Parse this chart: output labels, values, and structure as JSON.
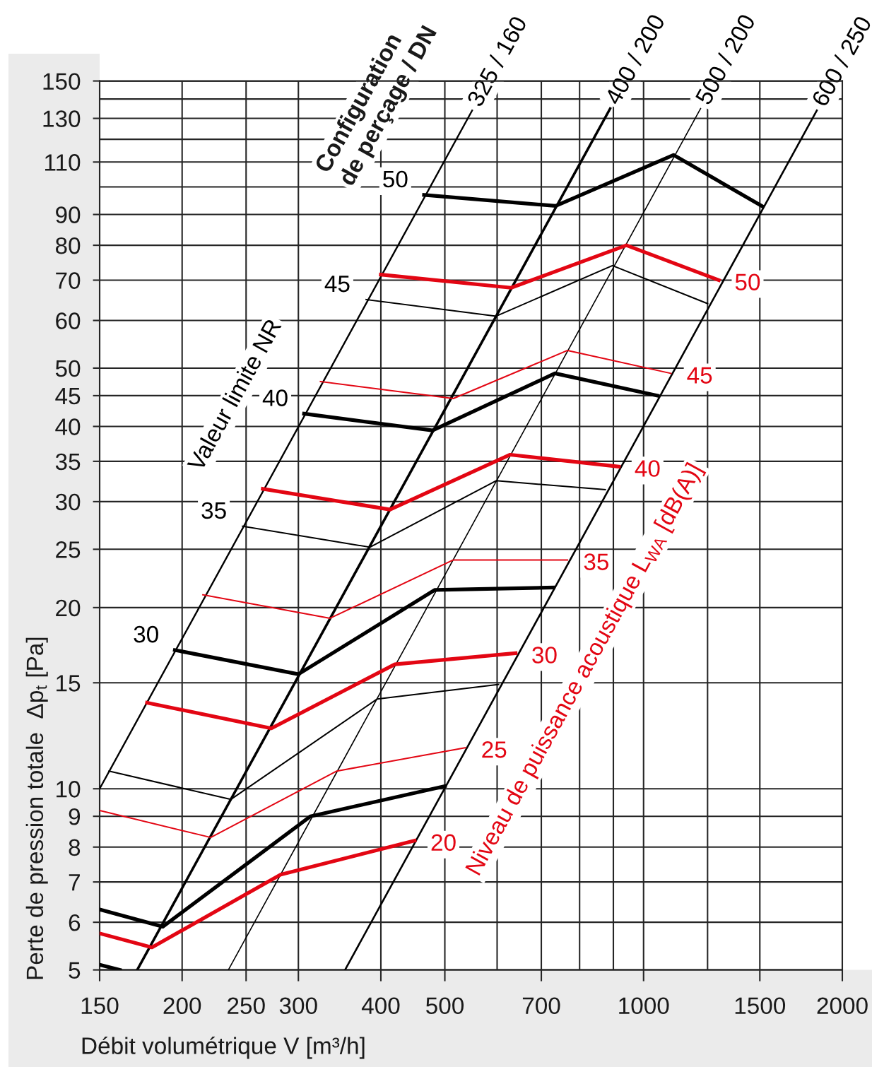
{
  "chart_data": {
    "type": "line",
    "xlabel": "Débit volumétrique V [m³/h]",
    "ylabel": "Perte de pression totale  Δp$_{t}$ [Pa]",
    "log": "xy",
    "xlim": [
      150,
      2000
    ],
    "ylim": [
      5,
      150
    ],
    "xticks": [
      150,
      200,
      250,
      300,
      400,
      500,
      {
        "value": 600,
        "label": null
      },
      700,
      {
        "value": 800,
        "label": null
      },
      {
        "value": 900,
        "label": null
      },
      1000,
      {
        "value": 1250,
        "label": null
      },
      1500,
      2000
    ],
    "yticks": [
      5,
      6,
      7,
      8,
      9,
      10,
      15,
      20,
      25,
      30,
      35,
      40,
      45,
      50,
      60,
      70,
      80,
      90,
      {
        "value": 100,
        "label": null
      },
      110,
      {
        "value": 120,
        "label": null
      },
      130,
      {
        "value": 140,
        "label": null
      },
      150
    ],
    "grid": true,
    "series": [
      {
        "name": "325 / 160",
        "color": "#000000",
        "x": [
          150,
          550
        ],
        "values": [
          10,
          134
        ]
      },
      {
        "name": "400 / 200",
        "color": "#000000",
        "x": [
          171,
          890
        ],
        "values": [
          5,
          135
        ]
      },
      {
        "name": "500 / 200",
        "color": "#000000",
        "x": [
          235,
          1220
        ],
        "values": [
          5,
          135
        ]
      },
      {
        "name": "600 / 250",
        "color": "#000000",
        "x": [
          353,
          1830
        ],
        "values": [
          5,
          134
        ]
      },
      {
        "name": "50",
        "color": "#000000",
        "x": [
          465,
          736,
          1110,
          1510
        ],
        "values": [
          97,
          93,
          113,
          93
        ]
      },
      {
        "name": "45",
        "color": "#000000",
        "x": [
          380,
          598,
          897,
          1250
        ],
        "values": [
          65,
          61,
          74,
          64
        ]
      },
      {
        "name": "40",
        "color": "#000000",
        "x": [
          306,
          479,
          734,
          1050
        ],
        "values": [
          42,
          39.4,
          49,
          45
        ]
      },
      {
        "name": "35",
        "color": "#000000",
        "x": [
          247,
          385,
          598,
          875
        ],
        "values": [
          27.3,
          25.2,
          32.5,
          31.4
        ]
      },
      {
        "name": "30",
        "color": "#000000",
        "x": [
          195,
          300,
          483,
          730
        ],
        "values": [
          17,
          15.5,
          21.4,
          21.6
        ]
      },
      {
        "color": "#000000",
        "x": [
          155,
          237,
          395,
          603
        ],
        "values": [
          10.7,
          9.6,
          14.1,
          14.9
        ]
      },
      {
        "color": "#000000",
        "x": [
          150,
          187,
          313,
          500
        ],
        "values": [
          6.3,
          5.9,
          9.0,
          10.1
        ]
      },
      {
        "color": "#000000",
        "x": [
          150,
          161
        ],
        "values": [
          5.1,
          5.0
        ]
      },
      {
        "name": "50",
        "color": "#e30613",
        "x": [
          400,
          630,
          942,
          1300
        ],
        "values": [
          71.5,
          68,
          80,
          70
        ]
      },
      {
        "name": "45",
        "color": "#e30613",
        "x": [
          324,
          515,
          767,
          1100
        ],
        "values": [
          47.5,
          44.5,
          53.5,
          49
        ]
      },
      {
        "name": "40",
        "color": "#e30613",
        "x": [
          265,
          413,
          628,
          917
        ],
        "values": [
          31.5,
          29.1,
          35.9,
          34.3
        ]
      },
      {
        "name": "35",
        "color": "#e30613",
        "x": [
          215,
          335,
          515,
          767
        ],
        "values": [
          21,
          19.2,
          24,
          24
        ]
      },
      {
        "name": "30",
        "color": "#e30613",
        "x": [
          177,
          273,
          420,
          640
        ],
        "values": [
          13.9,
          12.6,
          16.1,
          16.8
        ]
      },
      {
        "name": "25",
        "color": "#e30613",
        "x": [
          150,
          221,
          343,
          537
        ],
        "values": [
          9.2,
          8.3,
          10.7,
          11.7
        ]
      },
      {
        "name": "20",
        "color": "#e30613",
        "x": [
          150,
          180,
          282,
          450
        ],
        "values": [
          5.75,
          5.45,
          7.2,
          8.2
        ]
      }
    ],
    "annotations": [
      "Configuration\nde perçage / DN",
      "Valeur limite NR",
      "Niveau de puissance acoustique L$_{WA}$ [dB(A)]"
    ]
  }
}
